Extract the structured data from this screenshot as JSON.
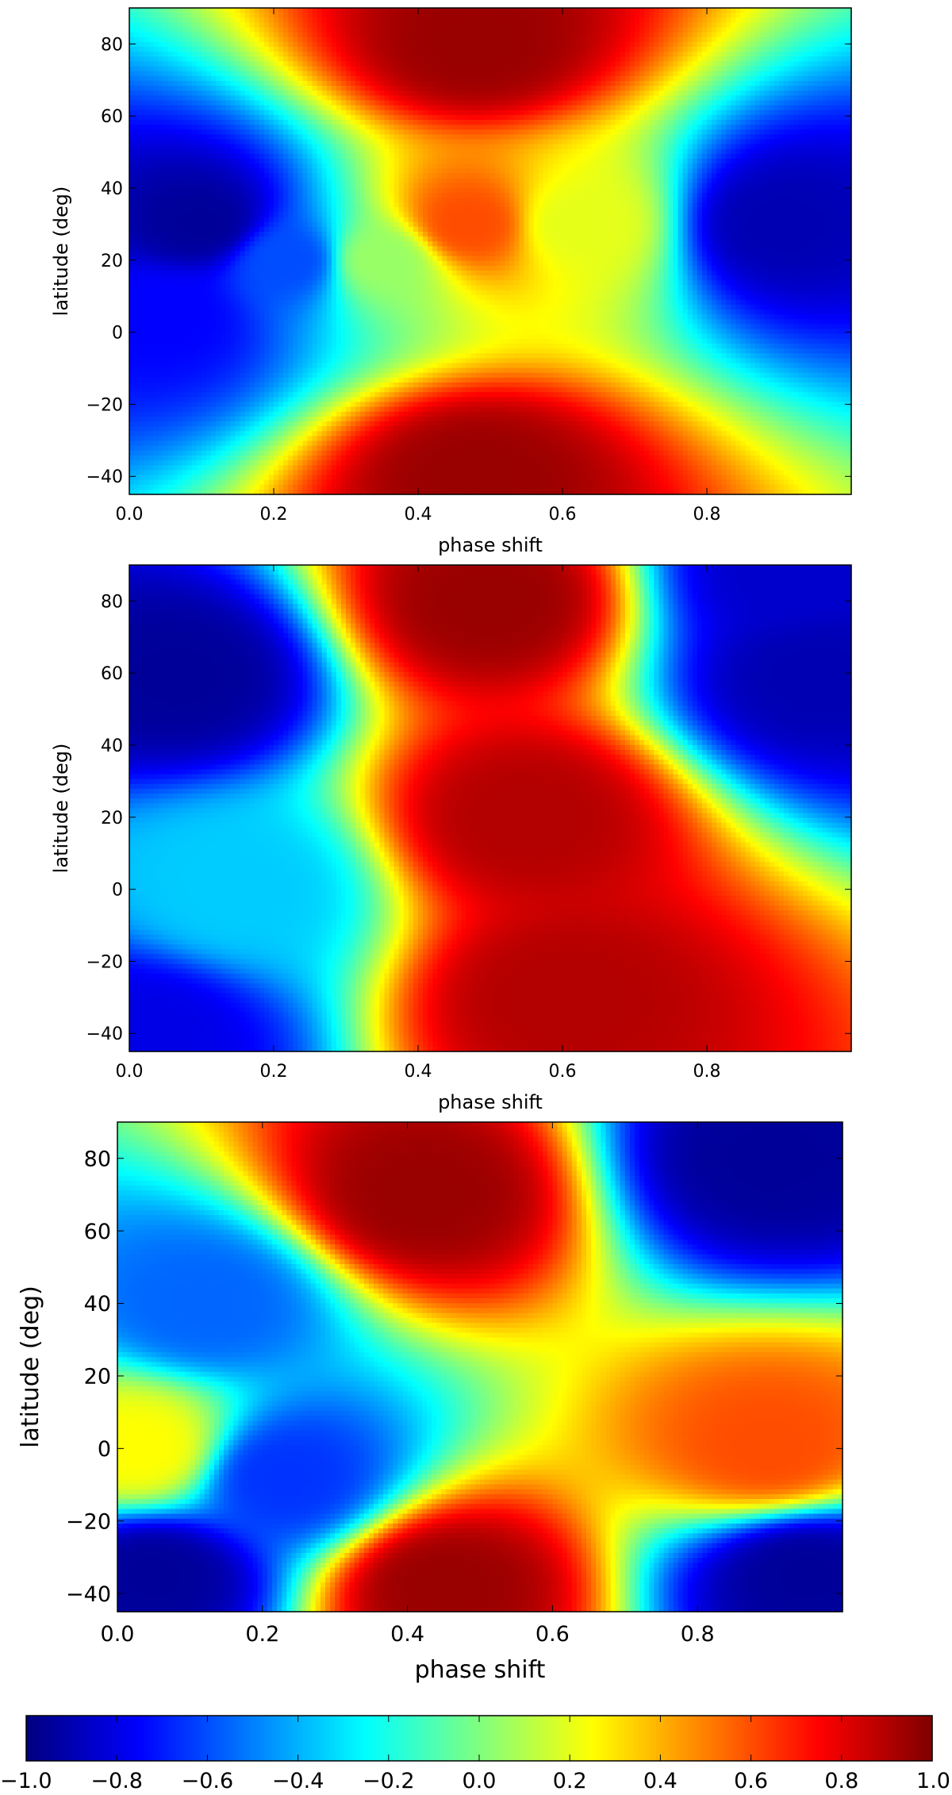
{
  "chart_data": [
    {
      "type": "heatmap",
      "xlabel": "phase shift",
      "ylabel": "latitude (deg)",
      "xlim": [
        0.0,
        1.0
      ],
      "ylim": [
        -45,
        90
      ],
      "xticks": [
        "0.0",
        "0.2",
        "0.4",
        "0.6",
        "0.8"
      ],
      "yticks": [
        "−40",
        "−20",
        "0",
        "20",
        "40",
        "60",
        "80"
      ],
      "colormap": "jet",
      "vlim": [
        -1.0,
        1.0
      ],
      "features": [
        {
          "x": 0.48,
          "y": 80,
          "value": 0.95
        },
        {
          "x": 0.48,
          "y": -40,
          "value": 0.95
        },
        {
          "x": 0.47,
          "y": 30,
          "value": 0.6
        },
        {
          "x": 0.1,
          "y": 30,
          "value": -0.95
        },
        {
          "x": 0.9,
          "y": 30,
          "value": -0.9
        },
        {
          "x": 0.05,
          "y": 5,
          "value": -0.75
        },
        {
          "x": 0.22,
          "y": 20,
          "value": -0.6
        },
        {
          "x": 0.35,
          "y": 20,
          "value": 0.05
        },
        {
          "x": 0.62,
          "y": 30,
          "value": 0.2
        }
      ]
    },
    {
      "type": "heatmap",
      "xlabel": "phase shift",
      "ylabel": "latitude (deg)",
      "xlim": [
        0.0,
        1.0
      ],
      "ylim": [
        -45,
        90
      ],
      "xticks": [
        "0.0",
        "0.2",
        "0.4",
        "0.6",
        "0.8"
      ],
      "yticks": [
        "−40",
        "−20",
        "0",
        "20",
        "40",
        "60",
        "80"
      ],
      "colormap": "jet",
      "vlim": [
        -1.0,
        1.0
      ],
      "features": [
        {
          "x": 0.5,
          "y": 80,
          "value": 0.95
        },
        {
          "x": 0.55,
          "y": 20,
          "value": 0.9
        },
        {
          "x": 0.6,
          "y": -30,
          "value": 0.9
        },
        {
          "x": 0.07,
          "y": 59,
          "value": -0.95
        },
        {
          "x": 0.95,
          "y": 59,
          "value": -0.9
        },
        {
          "x": 0.15,
          "y": 0,
          "value": -0.35
        },
        {
          "x": 0.02,
          "y": -40,
          "value": -0.8
        },
        {
          "x": 0.92,
          "y": 88,
          "value": -0.85
        }
      ]
    },
    {
      "type": "heatmap",
      "xlabel": "phase shift",
      "ylabel": "latitude (deg)",
      "xlim": [
        0.0,
        1.0
      ],
      "ylim": [
        -45,
        90
      ],
      "xticks": [
        "0.0",
        "0.2",
        "0.4",
        "0.6",
        "0.8"
      ],
      "yticks": [
        "−40",
        "−20",
        "0",
        "20",
        "40",
        "60",
        "80"
      ],
      "colormap": "jet",
      "vlim": [
        -1.0,
        1.0
      ],
      "features": [
        {
          "x": 0.42,
          "y": 70,
          "value": 0.95
        },
        {
          "x": 0.45,
          "y": -38,
          "value": 0.95
        },
        {
          "x": 0.9,
          "y": 80,
          "value": -0.95
        },
        {
          "x": 0.05,
          "y": -35,
          "value": -0.95
        },
        {
          "x": 0.95,
          "y": -35,
          "value": -0.95
        },
        {
          "x": 0.9,
          "y": 0,
          "value": 0.6
        },
        {
          "x": 0.03,
          "y": 0,
          "value": 0.25
        },
        {
          "x": 0.23,
          "y": -8,
          "value": -0.65
        },
        {
          "x": 0.12,
          "y": 40,
          "value": -0.55
        }
      ]
    }
  ],
  "colorbar": {
    "vmin": -1.0,
    "vmax": 1.0,
    "colormap": "jet",
    "ticks": [
      "−1.0",
      "−0.8",
      "−0.6",
      "−0.4",
      "−0.2",
      "0.0",
      "0.2",
      "0.4",
      "0.6",
      "0.8",
      "1.0"
    ]
  }
}
